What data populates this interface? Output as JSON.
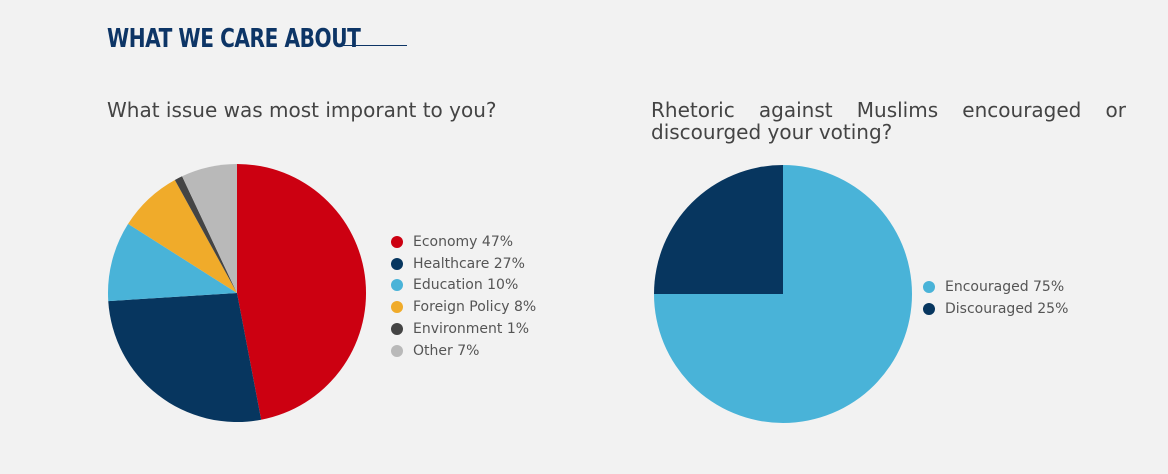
{
  "header": {
    "title": "WHAT WE CARE ABOUT"
  },
  "chart_data": [
    {
      "type": "pie",
      "title": "What issue was most imporant to you?",
      "slices": [
        {
          "label": "Economy 47%",
          "name": "Economy",
          "value": 47,
          "color": "#cc0011"
        },
        {
          "label": "Healthcare 27%",
          "name": "Healthcare",
          "value": 27,
          "color": "#07365f"
        },
        {
          "label": "Education 10%",
          "name": "Education",
          "value": 10,
          "color": "#49b3d8"
        },
        {
          "label": "Foreign Policy 8%",
          "name": "Foreign Policy",
          "value": 8,
          "color": "#f0ab2a"
        },
        {
          "label": "Environment 1%",
          "name": "Environment",
          "value": 1,
          "color": "#444444"
        },
        {
          "label": "Other 7%",
          "name": "Other",
          "value": 7,
          "color": "#b9b9b9"
        }
      ],
      "legend_position": "right"
    },
    {
      "type": "pie",
      "title": "Rhetoric against Muslims encouraged or discourged your voting?",
      "slices": [
        {
          "label": "Encouraged 75%",
          "name": "Encouraged",
          "value": 75,
          "color": "#49b3d8"
        },
        {
          "label": "Discouraged 25%",
          "name": "Discouraged",
          "value": 25,
          "color": "#07365f"
        }
      ],
      "legend_position": "right"
    }
  ]
}
